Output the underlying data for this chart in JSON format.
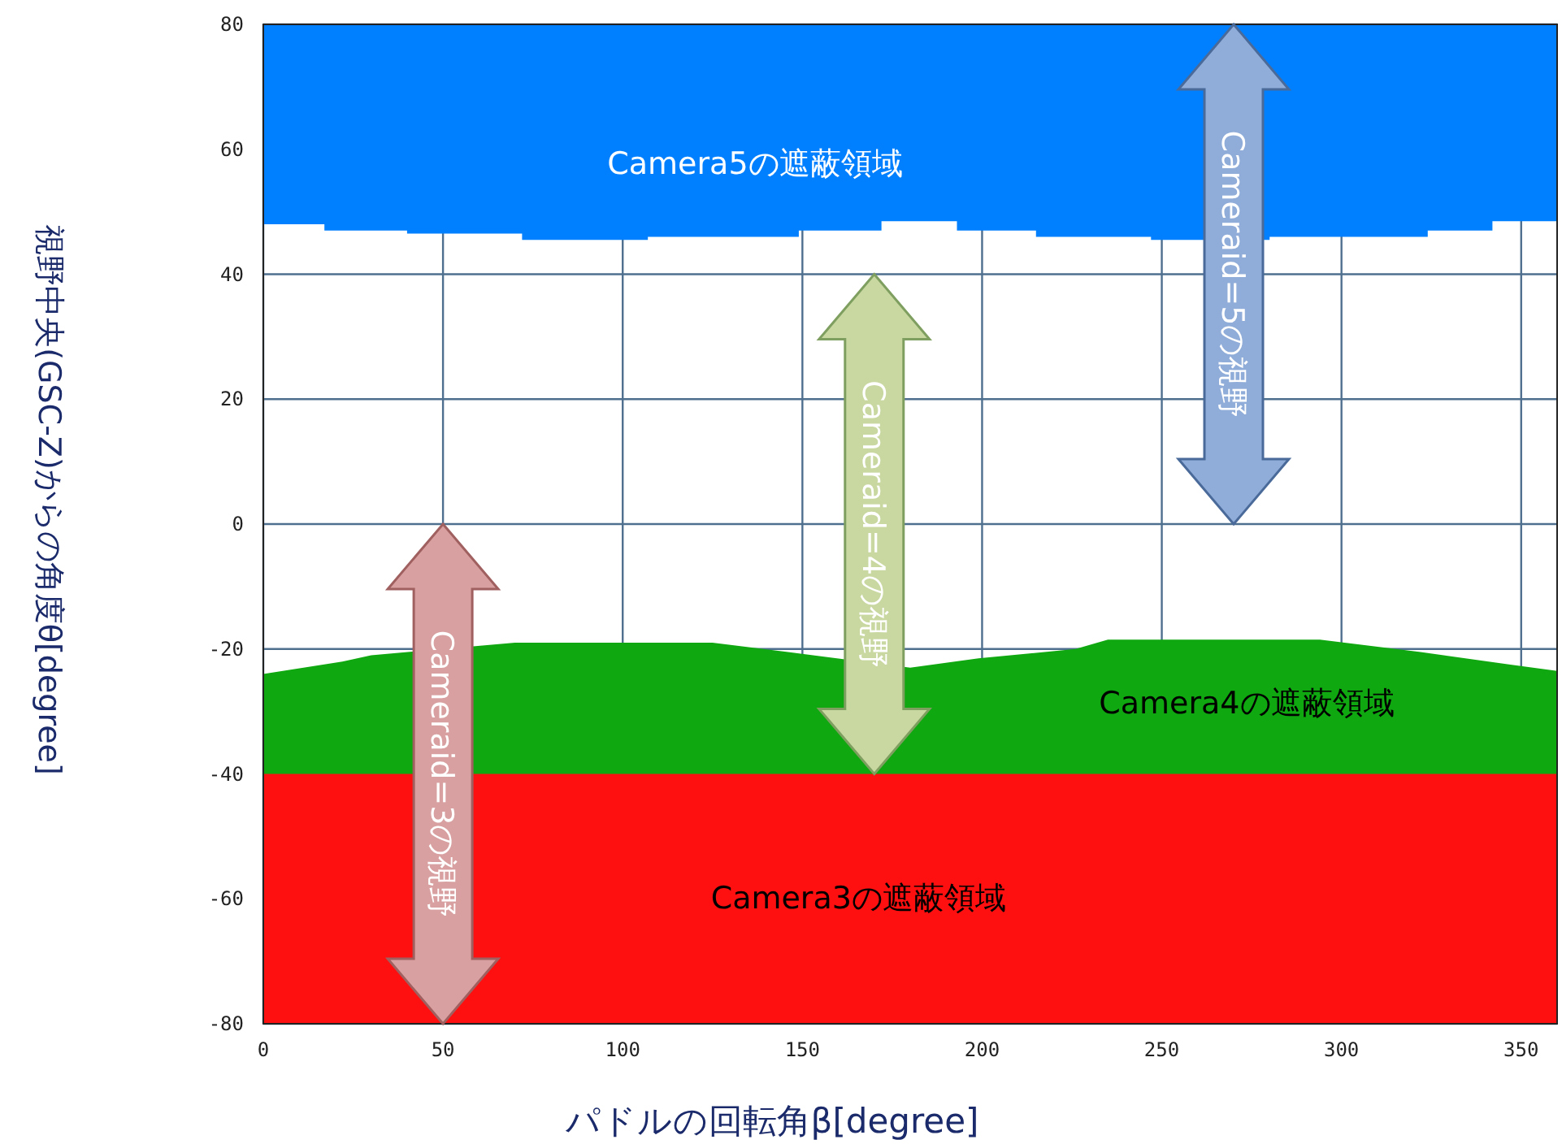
{
  "chart_data": {
    "type": "area",
    "xlabel": "パドルの回転角β[degree]",
    "ylabel": "視野中央(GSC-Z)からの角度θ[degree]",
    "xlim": [
      0,
      360
    ],
    "ylim": [
      -80,
      80
    ],
    "xticks": [
      0,
      50,
      100,
      150,
      200,
      250,
      300,
      350
    ],
    "yticks": [
      -80,
      -60,
      -40,
      -20,
      0,
      20,
      40,
      60,
      80
    ],
    "grid": true,
    "series": [
      {
        "name": "Camera4の遮蔽領域",
        "color": "#10a810",
        "x": [
          0,
          22,
          30,
          70,
          125,
          146,
          180,
          199,
          226,
          235,
          294,
          322,
          347,
          360
        ],
        "values": [
          -24,
          -22,
          -21,
          -19,
          -19,
          -20.5,
          -23,
          -21.5,
          -20,
          -18.5,
          -18.5,
          -20.5,
          -22.5,
          -23.5
        ]
      },
      {
        "name": "Camera5の遮蔽領域",
        "color": "#0080ff",
        "x": [
          0,
          17,
          17,
          40,
          40,
          72,
          72,
          107,
          107,
          149,
          149,
          172,
          172,
          193,
          193,
          215,
          215,
          247,
          247,
          280,
          280,
          324,
          324,
          342,
          342,
          360
        ],
        "values": [
          48,
          48,
          47,
          47,
          46.5,
          46.5,
          45.5,
          45.5,
          46,
          46,
          47,
          47,
          48.5,
          48.5,
          47,
          47,
          46,
          46,
          45.5,
          45.5,
          46,
          46,
          47,
          47,
          48.5,
          48.5
        ]
      }
    ],
    "bands": [
      {
        "axis": "y",
        "from": -80,
        "to": -40,
        "label": "Camera3の遮蔽領域",
        "color": "#ff1010"
      }
    ],
    "annotations": [
      "Cameraid=3の視野",
      "Cameraid=4の視野",
      "Cameraid=5の視野"
    ]
  }
}
